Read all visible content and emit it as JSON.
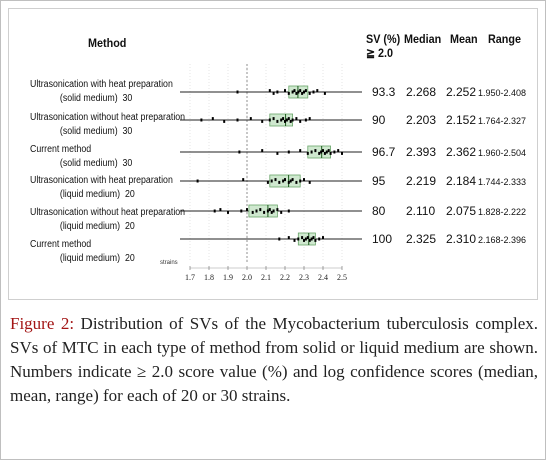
{
  "header": {
    "method": "Method",
    "sv_line1": "SV (%)",
    "sv_line2": "≧ 2.0",
    "median": "Median",
    "mean": "Mean",
    "range": "Range"
  },
  "rows": [
    {
      "line1": "Ultrasonication with heat preparation",
      "line2": "(solid medium)",
      "n": "30",
      "sv": "93.3",
      "median": "2.268",
      "mean": "2.252",
      "range": "1.950-2.408"
    },
    {
      "line1": "Ultrasonication without heat preparation",
      "line2": "(solid medium)",
      "n": "30",
      "sv": "90",
      "median": "2.203",
      "mean": "2.152",
      "range": "1.764-2.327"
    },
    {
      "line1": "Current method",
      "line2": "(solid medium)",
      "n": "30",
      "sv": "96.7",
      "median": "2.393",
      "mean": "2.362",
      "range": "1.960-2.504"
    },
    {
      "line1": "Ultrasonication with heat preparation",
      "line2": "(liquid medium)",
      "n": "20",
      "sv": "95",
      "median": "2.219",
      "mean": "2.184",
      "range": "1.744-2.333"
    },
    {
      "line1": "Ultrasonication without heat preparation",
      "line2": "(liquid medium)",
      "n": "20",
      "sv": "80",
      "median": "2.110",
      "mean": "2.075",
      "range": "1.828-2.222"
    },
    {
      "line1": "Current method",
      "line2": "(liquid medium)",
      "n": "20",
      "sv": "100",
      "median": "2.325",
      "mean": "2.310",
      "range": "2.168-2.396"
    }
  ],
  "axis": {
    "strains_label": "strains",
    "ticks": [
      "1.7",
      "1.8",
      "1.9",
      "2.0",
      "2.1",
      "2.2",
      "2.3",
      "2.4",
      "2.5"
    ],
    "min": 1.7,
    "max": 2.5,
    "dashed_at": 2.0
  },
  "box_data": [
    {
      "q1": 2.22,
      "q3": 2.32,
      "median": 2.268,
      "points": [
        1.95,
        2.12,
        2.14,
        2.16,
        2.2,
        2.22,
        2.24,
        2.25,
        2.26,
        2.27,
        2.28,
        2.29,
        2.3,
        2.31,
        2.33,
        2.35,
        2.37,
        2.41
      ]
    },
    {
      "q1": 2.12,
      "q3": 2.24,
      "median": 2.203,
      "points": [
        1.76,
        1.82,
        1.88,
        1.95,
        2.02,
        2.08,
        2.12,
        2.14,
        2.16,
        2.18,
        2.19,
        2.2,
        2.21,
        2.22,
        2.23,
        2.24,
        2.26,
        2.28,
        2.31,
        2.33
      ]
    },
    {
      "q1": 2.32,
      "q3": 2.44,
      "median": 2.393,
      "points": [
        1.96,
        2.08,
        2.16,
        2.22,
        2.28,
        2.32,
        2.34,
        2.36,
        2.38,
        2.39,
        2.4,
        2.41,
        2.42,
        2.43,
        2.44,
        2.46,
        2.48,
        2.5
      ]
    },
    {
      "q1": 2.12,
      "q3": 2.28,
      "median": 2.219,
      "points": [
        1.74,
        1.98,
        2.11,
        2.13,
        2.15,
        2.17,
        2.19,
        2.2,
        2.22,
        2.23,
        2.24,
        2.26,
        2.28,
        2.3,
        2.33
      ]
    },
    {
      "q1": 2.01,
      "q3": 2.16,
      "median": 2.11,
      "points": [
        1.83,
        1.86,
        1.9,
        1.97,
        2.0,
        2.03,
        2.05,
        2.07,
        2.09,
        2.11,
        2.12,
        2.13,
        2.14,
        2.16,
        2.18,
        2.22
      ]
    },
    {
      "q1": 2.27,
      "q3": 2.36,
      "median": 2.325,
      "points": [
        2.17,
        2.22,
        2.25,
        2.27,
        2.29,
        2.3,
        2.31,
        2.32,
        2.33,
        2.34,
        2.35,
        2.36,
        2.38,
        2.4
      ]
    }
  ],
  "caption": {
    "label": "Figure 2:",
    "text": " Distribution of SVs of the Mycobacterium tuberculosis complex. SVs of MTC in each type of method from solid or liquid medium are shown. Numbers indicate ≥ 2.0 score value (%) and log confidence scores (median, mean, range) for each of 20 or 30 strains."
  },
  "colors": {
    "box_fill": "#cfe8cf",
    "box_stroke": "#6aa56a",
    "dot": "#000000",
    "caption_label": "#a31515"
  }
}
